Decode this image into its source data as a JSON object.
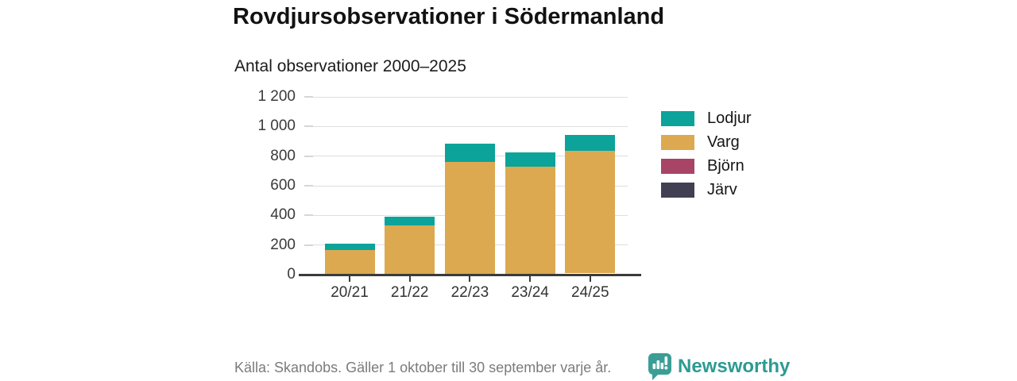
{
  "header": {
    "title": "Rovdjursobservationer i Södermanland",
    "subtitle": "Antal observationer 2000–2025"
  },
  "chart_data": {
    "type": "bar",
    "stacked": true,
    "categories": [
      "20/21",
      "21/22",
      "22/23",
      "23/24",
      "24/25"
    ],
    "series": [
      {
        "name": "Lodjur",
        "color": "#0ba39a",
        "values": [
          45,
          62,
          122,
          100,
          105
        ]
      },
      {
        "name": "Varg",
        "color": "#dca951",
        "values": [
          165,
          330,
          760,
          720,
          830
        ]
      },
      {
        "name": "Björn",
        "color": "#a84465",
        "values": [
          1,
          1,
          2,
          6,
          7
        ]
      },
      {
        "name": "Järv",
        "color": "#413f52",
        "values": [
          0,
          0,
          1,
          1,
          1
        ]
      }
    ],
    "y_ticks": [
      {
        "value": 0,
        "label": "0"
      },
      {
        "value": 200,
        "label": "200"
      },
      {
        "value": 400,
        "label": "400"
      },
      {
        "value": 600,
        "label": "600"
      },
      {
        "value": 800,
        "label": "800"
      },
      {
        "value": 1000,
        "label": "1 000"
      },
      {
        "value": 1200,
        "label": "1 200"
      }
    ],
    "ylim": [
      0,
      1200
    ],
    "grid": true,
    "legend_position": "right",
    "title": "Rovdjursobservationer i Södermanland",
    "xlabel": "",
    "ylabel": "Antal observationer"
  },
  "footer": {
    "source": "Källa: Skandobs. Gäller 1 oktober till 30 september varje år.",
    "brand": "Newsworthy"
  },
  "colors": {
    "accent_teal": "#0ba39a",
    "brand_teal": "#2e9a93",
    "axis": "#3b3b3b",
    "gridline": "#dedede",
    "text_muted": "#7b7b7b"
  }
}
